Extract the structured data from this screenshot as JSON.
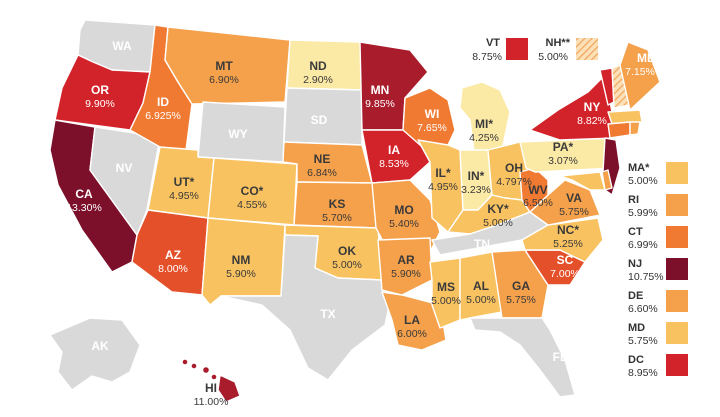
{
  "map": {
    "colors": {
      "no_tax": "#d9d9d9",
      "lightest": "#fbe9a6",
      "light": "#f8c260",
      "mid": "#f5a04a",
      "orange": "#f07a32",
      "red_orange": "#e4502a",
      "red": "#d2222a",
      "dark_red": "#a81c2c",
      "darkest": "#7c0f2a",
      "border": "#ffffff"
    },
    "states": {
      "WA": {
        "abbr": "WA",
        "rate": ""
      },
      "OR": {
        "abbr": "OR",
        "rate": "9.90%"
      },
      "CA": {
        "abbr": "CA",
        "rate": "13.30%"
      },
      "NV": {
        "abbr": "NV",
        "rate": ""
      },
      "ID": {
        "abbr": "ID",
        "rate": "6.925%"
      },
      "MT": {
        "abbr": "MT",
        "rate": "6.90%"
      },
      "WY": {
        "abbr": "WY",
        "rate": ""
      },
      "UT": {
        "abbr": "UT*",
        "rate": "4.95%"
      },
      "AZ": {
        "abbr": "AZ",
        "rate": "8.00%"
      },
      "CO": {
        "abbr": "CO*",
        "rate": "4.55%"
      },
      "NM": {
        "abbr": "NM",
        "rate": "5.90%"
      },
      "ND": {
        "abbr": "ND",
        "rate": "2.90%"
      },
      "SD": {
        "abbr": "SD",
        "rate": ""
      },
      "NE": {
        "abbr": "NE",
        "rate": "6.84%"
      },
      "KS": {
        "abbr": "KS",
        "rate": "5.70%"
      },
      "OK": {
        "abbr": "OK",
        "rate": "5.00%"
      },
      "TX": {
        "abbr": "TX",
        "rate": ""
      },
      "MN": {
        "abbr": "MN",
        "rate": "9.85%"
      },
      "IA": {
        "abbr": "IA",
        "rate": "8.53%"
      },
      "MO": {
        "abbr": "MO",
        "rate": "5.40%"
      },
      "AR": {
        "abbr": "AR",
        "rate": "5.90%"
      },
      "LA": {
        "abbr": "LA",
        "rate": "6.00%"
      },
      "WI": {
        "abbr": "WI",
        "rate": "7.65%"
      },
      "IL": {
        "abbr": "IL*",
        "rate": "4.95%"
      },
      "MI": {
        "abbr": "MI*",
        "rate": "4.25%"
      },
      "IN": {
        "abbr": "IN*",
        "rate": "3.23%"
      },
      "OH": {
        "abbr": "OH",
        "rate": "4.797%"
      },
      "KY": {
        "abbr": "KY*",
        "rate": "5.00%"
      },
      "TN": {
        "abbr": "TN",
        "rate": ""
      },
      "MS": {
        "abbr": "MS",
        "rate": "5.00%"
      },
      "AL": {
        "abbr": "AL",
        "rate": "5.00%"
      },
      "GA": {
        "abbr": "GA",
        "rate": "5.75%"
      },
      "FL": {
        "abbr": "FL",
        "rate": ""
      },
      "SC": {
        "abbr": "SC",
        "rate": "7.00%"
      },
      "NC": {
        "abbr": "NC*",
        "rate": "5.25%"
      },
      "VA": {
        "abbr": "VA",
        "rate": "5.75%"
      },
      "WV": {
        "abbr": "WV",
        "rate": "6.50%"
      },
      "PA": {
        "abbr": "PA*",
        "rate": "3.07%"
      },
      "NY": {
        "abbr": "NY",
        "rate": "8.82%"
      },
      "ME": {
        "abbr": "ME",
        "rate": "7.15%"
      },
      "AK": {
        "abbr": "AK",
        "rate": ""
      },
      "HI": {
        "abbr": "HI",
        "rate": "11.00%"
      }
    },
    "top_legend": {
      "VT": {
        "abbr": "VT",
        "rate": "8.75%"
      },
      "NH": {
        "abbr": "NH**",
        "rate": "5.00%"
      }
    },
    "side_legend": [
      {
        "abbr": "MA*",
        "rate": "5.00%"
      },
      {
        "abbr": "RI",
        "rate": "5.99%"
      },
      {
        "abbr": "CT",
        "rate": "6.99%"
      },
      {
        "abbr": "NJ",
        "rate": "10.75%"
      },
      {
        "abbr": "DE",
        "rate": "6.60%"
      },
      {
        "abbr": "MD",
        "rate": "5.75%"
      },
      {
        "abbr": "DC",
        "rate": "8.95%"
      }
    ]
  }
}
